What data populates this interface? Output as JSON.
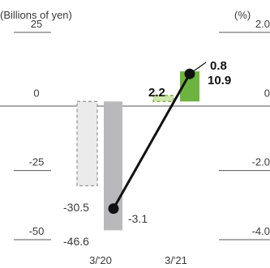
{
  "chart_data": {
    "type": "bar",
    "left_axis_label": "(Billions of yen)",
    "right_axis_label": "(%)",
    "categories": [
      "3/'20",
      "3/'21"
    ],
    "left_ticks": [
      "25",
      "0",
      "-25",
      "-50"
    ],
    "left_ylim": [
      -50,
      25
    ],
    "right_ticks": [
      "2.0",
      "0",
      "-2.0",
      "-4.0"
    ],
    "right_ylim": [
      -4.0,
      2.0
    ],
    "bars": [
      {
        "category": "3/'20",
        "value": -30.5,
        "label": "-30.5",
        "style": "dashed-outline",
        "color": "#d6d6d6"
      },
      {
        "category": "3/'20",
        "value": -46.6,
        "label": "-46.6",
        "style": "solid",
        "color": "#b9b9bc"
      },
      {
        "category": "3/'21",
        "value": 2.2,
        "label": "2.2",
        "style": "dashed-outline",
        "color": "#b7d98a"
      },
      {
        "category": "3/'21",
        "value": 10.9,
        "label": "10.9",
        "style": "solid",
        "color": "#6db33f"
      }
    ],
    "line": {
      "values": [
        -3.1,
        0.8
      ],
      "labels": [
        "-3.1",
        "0.8"
      ],
      "color": "#111111"
    },
    "grid": false
  }
}
